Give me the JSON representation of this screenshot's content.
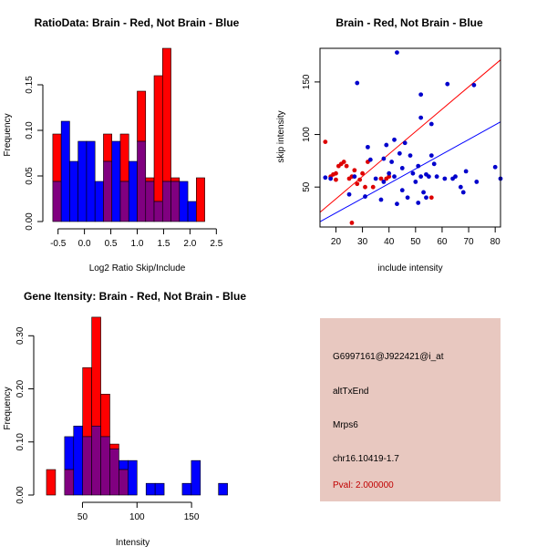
{
  "colors": {
    "red": "#ff0000",
    "blue": "#0000ff",
    "overlap": "#800080",
    "red_point": "#dd0000",
    "blue_point": "#0000cc",
    "info_bg": "#e8c8c0",
    "pval_text": "#c00000"
  },
  "chart_data": [
    {
      "id": "ratio_hist",
      "type": "histogram",
      "title": "RatioData: Brain - Red, Not Brain - Blue",
      "xlabel": "Log2 Ratio Skip/Include",
      "ylabel": "Frequency",
      "xlim": [
        -0.65,
        2.65
      ],
      "ylim": [
        0,
        0.19
      ],
      "xticks": [
        -0.5,
        0.0,
        0.5,
        1.0,
        1.5,
        2.0,
        2.5
      ],
      "xtick_labels": [
        "-0.5",
        "0.0",
        "0.5",
        "1.0",
        "1.5",
        "2.0",
        "2.5"
      ],
      "yticks": [
        0.0,
        0.05,
        0.1,
        0.15
      ],
      "ytick_labels": [
        "0.00",
        "0.05",
        "0.10",
        "0.15"
      ],
      "bin_start": -0.6,
      "bin_width": 0.16,
      "series": [
        {
          "name": "Brain",
          "color": "red",
          "values": [
            0.096,
            0.0,
            0.0,
            0.0,
            0.0,
            0.0,
            0.096,
            0.0,
            0.096,
            0.0,
            0.143,
            0.048,
            0.16,
            0.19,
            0.048,
            0.0,
            0.0,
            0.048
          ]
        },
        {
          "name": "Not Brain",
          "color": "blue",
          "values": [
            0.044,
            0.11,
            0.066,
            0.088,
            0.088,
            0.044,
            0.066,
            0.088,
            0.044,
            0.066,
            0.088,
            0.044,
            0.022,
            0.044,
            0.044,
            0.044,
            0.022,
            0.0
          ]
        }
      ]
    },
    {
      "id": "scatter",
      "type": "scatter",
      "title": "Brain - Red, Not Brain - Blue",
      "xlabel": "include intensity",
      "ylabel": "skip intensity",
      "xlim": [
        14,
        82
      ],
      "ylim": [
        12,
        182
      ],
      "xticks": [
        20,
        30,
        40,
        50,
        60,
        70,
        80
      ],
      "xtick_labels": [
        "20",
        "30",
        "40",
        "50",
        "60",
        "70",
        "80"
      ],
      "yticks": [
        50,
        100,
        150
      ],
      "ytick_labels": [
        "50",
        "100",
        "150"
      ],
      "series": [
        {
          "name": "Brain",
          "color": "red_point",
          "points": [
            [
              16,
              93
            ],
            [
              18,
              60
            ],
            [
              19,
              62
            ],
            [
              20,
              57
            ],
            [
              20,
              63
            ],
            [
              21,
              70
            ],
            [
              22,
              72
            ],
            [
              23,
              74
            ],
            [
              24,
              70
            ],
            [
              25,
              58
            ],
            [
              26,
              16
            ],
            [
              26,
              60
            ],
            [
              27,
              66
            ],
            [
              28,
              53
            ],
            [
              29,
              57
            ],
            [
              30,
              63
            ],
            [
              31,
              50
            ],
            [
              32,
              74
            ],
            [
              34,
              50
            ],
            [
              37,
              58
            ],
            [
              39,
              58
            ],
            [
              40,
              60
            ],
            [
              56,
              40
            ]
          ],
          "trend": [
            [
              14,
              26
            ],
            [
              82,
              171
            ]
          ]
        },
        {
          "name": "Not Brain",
          "color": "blue_point",
          "points": [
            [
              16,
              59
            ],
            [
              18,
              58
            ],
            [
              25,
              43
            ],
            [
              27,
              60
            ],
            [
              28,
              149
            ],
            [
              31,
              41
            ],
            [
              32,
              88
            ],
            [
              33,
              76
            ],
            [
              35,
              58
            ],
            [
              37,
              38
            ],
            [
              38,
              77
            ],
            [
              38,
              55
            ],
            [
              39,
              90
            ],
            [
              40,
              63
            ],
            [
              41,
              74
            ],
            [
              42,
              60
            ],
            [
              42,
              95
            ],
            [
              43,
              178
            ],
            [
              43,
              34
            ],
            [
              44,
              82
            ],
            [
              45,
              47
            ],
            [
              45,
              68
            ],
            [
              46,
              92
            ],
            [
              47,
              40
            ],
            [
              48,
              80
            ],
            [
              49,
              63
            ],
            [
              50,
              55
            ],
            [
              51,
              35
            ],
            [
              51,
              70
            ],
            [
              52,
              138
            ],
            [
              52,
              116
            ],
            [
              52,
              60
            ],
            [
              53,
              45
            ],
            [
              54,
              40
            ],
            [
              54,
              62
            ],
            [
              55,
              60
            ],
            [
              56,
              110
            ],
            [
              56,
              80
            ],
            [
              57,
              72
            ],
            [
              58,
              60
            ],
            [
              61,
              58
            ],
            [
              62,
              148
            ],
            [
              64,
              58
            ],
            [
              65,
              60
            ],
            [
              67,
              50
            ],
            [
              68,
              45
            ],
            [
              69,
              65
            ],
            [
              72,
              147
            ],
            [
              73,
              55
            ],
            [
              80,
              69
            ],
            [
              82,
              58
            ]
          ],
          "trend": [
            [
              14,
              17
            ],
            [
              82,
              112
            ]
          ]
        }
      ]
    },
    {
      "id": "gene_hist",
      "type": "histogram",
      "title": "Gene Itensity: Brain - Red, Not Brain - Blue",
      "xlabel": "Intensity",
      "ylabel": "Frequency",
      "xlim": [
        12,
        180
      ],
      "ylim": [
        0,
        0.34
      ],
      "xticks": [
        50,
        100,
        150
      ],
      "xtick_labels": [
        "50",
        "100",
        "150"
      ],
      "yticks": [
        0.0,
        0.1,
        0.2,
        0.3
      ],
      "ytick_labels": [
        "0.00",
        "0.10",
        "0.20",
        "0.30"
      ],
      "bin_start": 17,
      "bin_width": 8.3,
      "series": [
        {
          "name": "Brain",
          "color": "red",
          "values": [
            0.048,
            0.0,
            0.048,
            0.0,
            0.24,
            0.335,
            0.19,
            0.096,
            0.048,
            0.0,
            0.0,
            0.0,
            0.0,
            0.0,
            0.0,
            0.0,
            0.0,
            0.0,
            0.0,
            0.0
          ]
        },
        {
          "name": "Not Brain",
          "color": "blue",
          "values": [
            0.0,
            0.0,
            0.11,
            0.13,
            0.11,
            0.13,
            0.11,
            0.087,
            0.065,
            0.065,
            0.0,
            0.022,
            0.022,
            0.0,
            0.0,
            0.022,
            0.065,
            0.0,
            0.0,
            0.022
          ]
        }
      ]
    }
  ],
  "info_panel": {
    "probe_id": "G6997161@J922421@i_at",
    "event_type": "altTxEnd",
    "gene": "Mrps6",
    "location": "chr16.10419-1.7",
    "pval": "Pval: 2.000000"
  }
}
